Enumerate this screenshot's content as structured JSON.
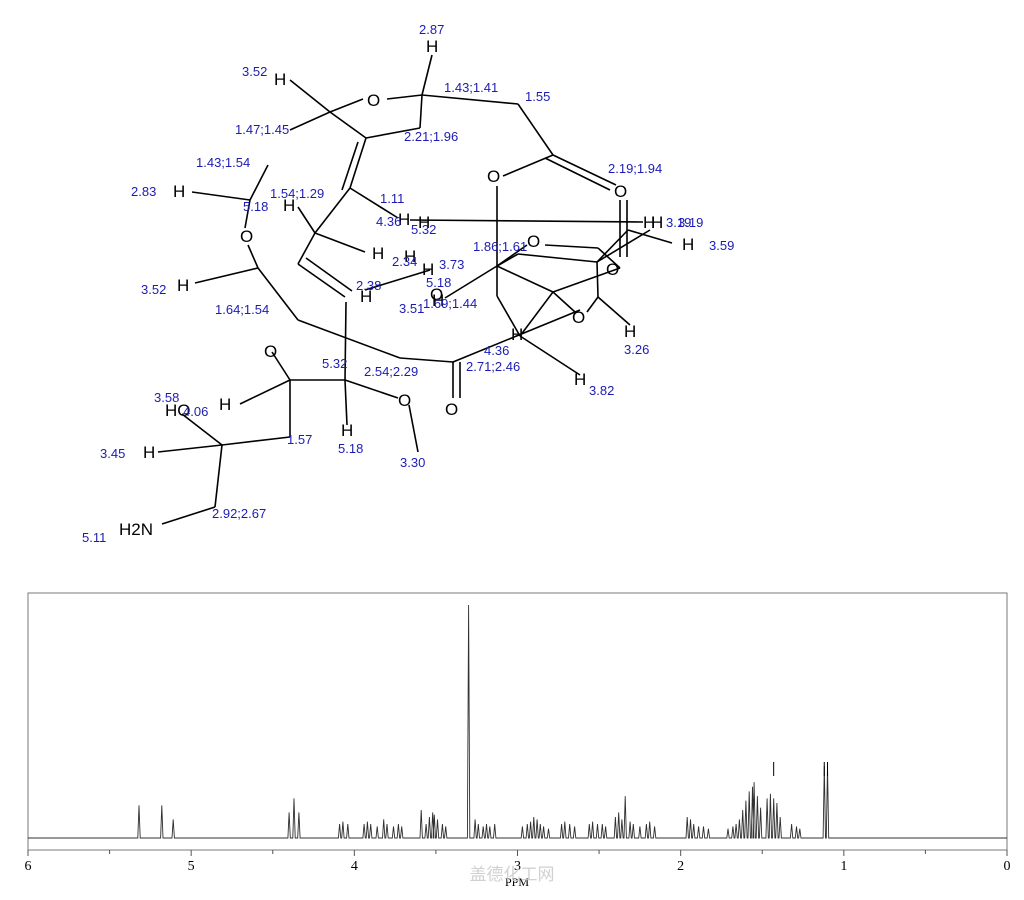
{
  "structure": {
    "shift_labels": [
      "2.87",
      "3.52",
      "1.43;1.41",
      "1.55",
      "1.47;1.45",
      "2.21;1.96",
      "1.43;1.54",
      "2.19;1.94",
      "2.83",
      "1.54;1.29",
      "5.18",
      "1.11",
      "4.36",
      "3.19",
      "3.19",
      "5.32",
      "1.86;1.61",
      "3.59",
      "2.34",
      "3.73",
      "3.52",
      "2.38",
      "5.18",
      "3.51",
      "1.69;1.44",
      "1.64;1.54",
      "3.26",
      "4.36",
      "5.32",
      "2.54;2.29",
      "2.71;2.46",
      "3.82",
      "3.58",
      "4.06",
      "1.57",
      "5.18",
      "3.45",
      "3.30",
      "2.92;2.67",
      "5.11"
    ],
    "atom_labels": [
      "H",
      "H",
      "O",
      "O",
      "O",
      "H",
      "H",
      "O",
      "H",
      "H",
      "O",
      "H",
      "H",
      "H",
      "H",
      "H",
      "O",
      "H",
      "H",
      "O",
      "H",
      "H",
      "H",
      "O",
      "O",
      "O",
      "HO",
      "H",
      "H",
      "H",
      "H2N"
    ]
  },
  "chart_data": {
    "type": "line",
    "xlabel": "PPM",
    "xlim": [
      6,
      0
    ],
    "x_ticks": [
      "6",
      "5",
      "4",
      "3",
      "2",
      "1",
      "0"
    ],
    "series": [
      {
        "values": [
          [
            5.32,
            0.14
          ],
          [
            5.18,
            0.14
          ],
          [
            5.11,
            0.08
          ],
          [
            4.4,
            0.11
          ],
          [
            4.37,
            0.17
          ],
          [
            4.34,
            0.11
          ],
          [
            4.09,
            0.06
          ],
          [
            4.07,
            0.07
          ],
          [
            4.04,
            0.06
          ],
          [
            3.94,
            0.06
          ],
          [
            3.92,
            0.07
          ],
          [
            3.9,
            0.06
          ],
          [
            3.86,
            0.05
          ],
          [
            3.82,
            0.08
          ],
          [
            3.8,
            0.06
          ],
          [
            3.76,
            0.05
          ],
          [
            3.73,
            0.06
          ],
          [
            3.71,
            0.05
          ],
          [
            3.59,
            0.12
          ],
          [
            3.56,
            0.06
          ],
          [
            3.54,
            0.09
          ],
          [
            3.52,
            0.11
          ],
          [
            3.51,
            0.1
          ],
          [
            3.49,
            0.08
          ],
          [
            3.46,
            0.06
          ],
          [
            3.44,
            0.05
          ],
          [
            3.3,
            1.0
          ],
          [
            3.26,
            0.08
          ],
          [
            3.24,
            0.06
          ],
          [
            3.21,
            0.05
          ],
          [
            3.19,
            0.06
          ],
          [
            3.17,
            0.05
          ],
          [
            3.14,
            0.06
          ],
          [
            2.97,
            0.05
          ],
          [
            2.94,
            0.06
          ],
          [
            2.92,
            0.07
          ],
          [
            2.9,
            0.09
          ],
          [
            2.88,
            0.08
          ],
          [
            2.86,
            0.06
          ],
          [
            2.84,
            0.05
          ],
          [
            2.81,
            0.04
          ],
          [
            2.73,
            0.06
          ],
          [
            2.71,
            0.07
          ],
          [
            2.68,
            0.06
          ],
          [
            2.65,
            0.05
          ],
          [
            2.56,
            0.06
          ],
          [
            2.54,
            0.07
          ],
          [
            2.51,
            0.06
          ],
          [
            2.48,
            0.06
          ],
          [
            2.46,
            0.05
          ],
          [
            2.4,
            0.09
          ],
          [
            2.38,
            0.11
          ],
          [
            2.36,
            0.08
          ],
          [
            2.34,
            0.18
          ],
          [
            2.31,
            0.07
          ],
          [
            2.29,
            0.06
          ],
          [
            2.25,
            0.05
          ],
          [
            2.21,
            0.06
          ],
          [
            2.19,
            0.07
          ],
          [
            2.16,
            0.05
          ],
          [
            1.96,
            0.09
          ],
          [
            1.94,
            0.08
          ],
          [
            1.92,
            0.06
          ],
          [
            1.89,
            0.05
          ],
          [
            1.86,
            0.05
          ],
          [
            1.83,
            0.04
          ],
          [
            1.71,
            0.04
          ],
          [
            1.68,
            0.05
          ],
          [
            1.66,
            0.06
          ],
          [
            1.64,
            0.08
          ],
          [
            1.62,
            0.12
          ],
          [
            1.6,
            0.16
          ],
          [
            1.58,
            0.2
          ],
          [
            1.56,
            0.22
          ],
          [
            1.55,
            0.24
          ],
          [
            1.53,
            0.18
          ],
          [
            1.51,
            0.13
          ],
          [
            1.47,
            0.17
          ],
          [
            1.45,
            0.19
          ],
          [
            1.43,
            0.17
          ],
          [
            1.41,
            0.15
          ],
          [
            1.39,
            0.09
          ],
          [
            1.32,
            0.06
          ],
          [
            1.29,
            0.05
          ],
          [
            1.27,
            0.04
          ],
          [
            1.12,
            0.31
          ],
          [
            1.1,
            0.31
          ]
        ]
      }
    ],
    "marker_ppm": [
      1.43,
      1.12,
      1.1
    ]
  },
  "watermark": "盖德化工网"
}
